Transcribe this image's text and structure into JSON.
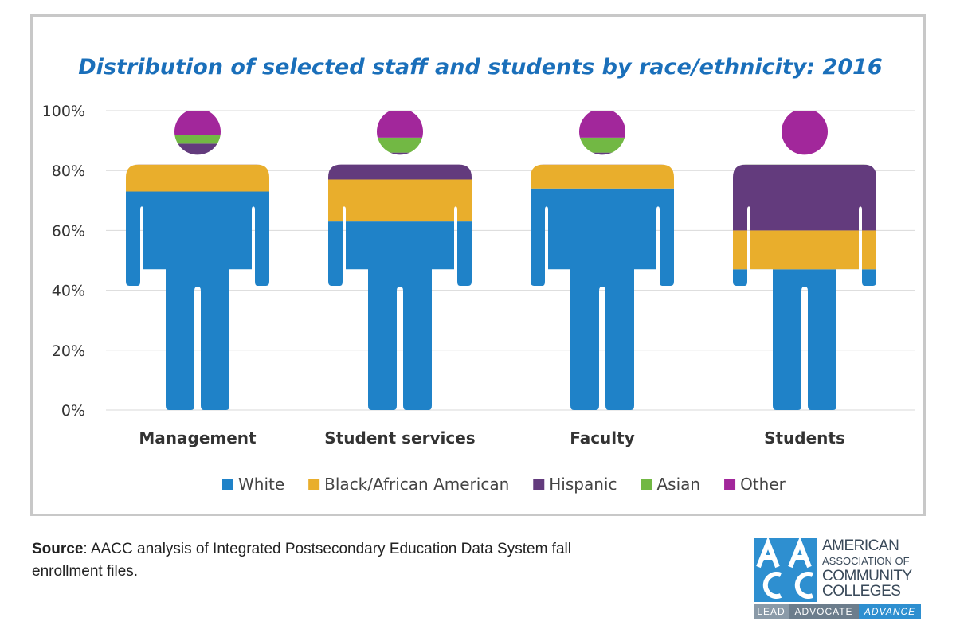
{
  "chart_data": {
    "type": "bar",
    "title": "Distribution of selected staff and students by race/ethnicity: 2016",
    "categories": [
      "Management",
      "Student services",
      "Faculty",
      "Students"
    ],
    "y_ticks": [
      "0%",
      "20%",
      "40%",
      "60%",
      "80%",
      "100%"
    ],
    "ylim": [
      0,
      100
    ],
    "grid": true,
    "legend_position": "bottom",
    "series": [
      {
        "name": "White",
        "color": "#1f82c8",
        "values": [
          73,
          63,
          74,
          47
        ]
      },
      {
        "name": "Black/African American",
        "color": "#e9ae2c",
        "values": [
          9,
          14,
          8,
          13
        ]
      },
      {
        "name": "Hispanic",
        "color": "#633b7d",
        "values": [
          7,
          9,
          4,
          22
        ]
      },
      {
        "name": "Asian",
        "color": "#72b844",
        "values": [
          3,
          5,
          5,
          3
        ]
      },
      {
        "name": "Other",
        "color": "#a2279b",
        "values": [
          8,
          9,
          9,
          15
        ]
      }
    ]
  },
  "source": {
    "label": "Source",
    "text": ": AACC analysis of Integrated Postsecondary Education Data System fall enrollment files."
  },
  "logo": {
    "lines": [
      "AMERICAN",
      "ASSOCIATION OF",
      "COMMUNITY",
      "COLLEGES"
    ],
    "tagline": [
      "LEAD",
      "ADVOCATE",
      "ADVANCE"
    ]
  }
}
